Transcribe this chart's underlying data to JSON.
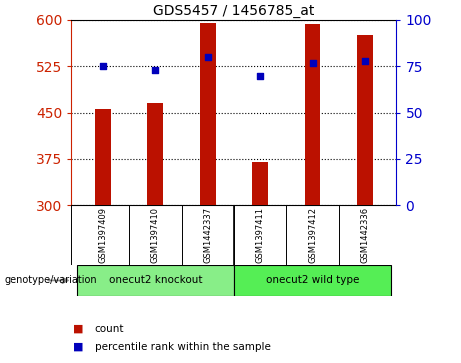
{
  "title": "GDS5457 / 1456785_at",
  "samples": [
    "GSM1397409",
    "GSM1397410",
    "GSM1442337",
    "GSM1397411",
    "GSM1397412",
    "GSM1442336"
  ],
  "counts": [
    455,
    465,
    595,
    370,
    593,
    575
  ],
  "percentiles": [
    75,
    73,
    80,
    70,
    77,
    78
  ],
  "ylim_left": [
    300,
    600
  ],
  "ylim_right": [
    0,
    100
  ],
  "yticks_left": [
    300,
    375,
    450,
    525,
    600
  ],
  "yticks_right": [
    0,
    25,
    50,
    75,
    100
  ],
  "bar_color": "#bb1100",
  "dot_color": "#0000bb",
  "groups": [
    {
      "label": "onecut2 knockout",
      "indices": [
        0,
        1,
        2
      ],
      "color": "#88ee88"
    },
    {
      "label": "onecut2 wild type",
      "indices": [
        3,
        4,
        5
      ],
      "color": "#55ee55"
    }
  ],
  "group_label": "genotype/variation",
  "legend_items": [
    {
      "label": "count",
      "color": "#bb1100"
    },
    {
      "label": "percentile rank within the sample",
      "color": "#0000bb"
    }
  ],
  "background_color": "#ffffff",
  "plot_bg": "#ffffff",
  "tick_label_area_color": "#cccccc"
}
